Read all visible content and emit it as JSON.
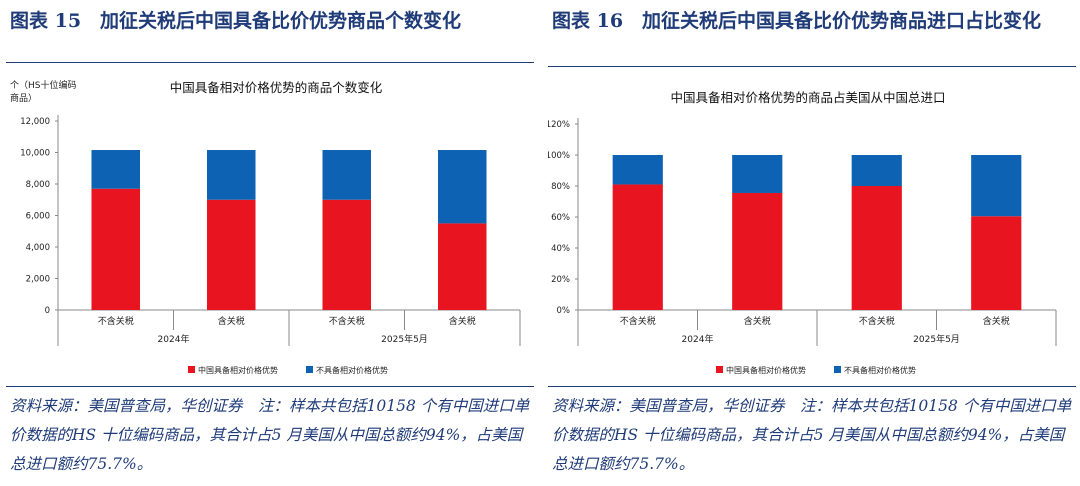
{
  "charts": [
    {
      "fig_title": "图表 15　加征关税后中国具备比价优势商品个数变化",
      "source_note": "资料来源：美国普查局，华创证券　注：样本共包括10158 个有中国进口单价数据的HS 十位编码商品，其合计占5 月美国从中国总额约94%，占美国总进口额约75.7%。",
      "colors": {
        "series_a": "#e8141f",
        "series_b": "#0d62b3"
      },
      "chart_data": {
        "type": "bar",
        "stacked": true,
        "title": "中国具备相对价格优势的商品个数变化",
        "ylabel": "个（HS十位编码商品）",
        "ylim": [
          0,
          12000
        ],
        "yticks": [
          "0",
          "2,000",
          "4,000",
          "6,000",
          "8,000",
          "10,000",
          "12,000"
        ],
        "categories": [
          "不含关税",
          "含关税",
          "不含关税",
          "含关税"
        ],
        "groups": [
          {
            "label": "2024年",
            "span": [
              0,
              1
            ]
          },
          {
            "label": "2025年5月",
            "span": [
              2,
              3
            ]
          }
        ],
        "series": [
          {
            "name": "中国具备相对价格优势",
            "values": [
              7700,
              7000,
              7000,
              5500
            ]
          },
          {
            "name": "不具备相对价格优势",
            "values": [
              2458,
              3158,
              3158,
              4658
            ]
          }
        ],
        "legend_position": "bottom",
        "grid": false
      }
    },
    {
      "fig_title": "图表 16　加征关税后中国具备比价优势商品进口占比变化",
      "source_note": "资料来源：美国普查局，华创证券　注：样本共包括10158 个有中国进口单价数据的HS 十位编码商品，其合计占5 月美国从中国总额约94%，占美国总进口额约75.7%。",
      "colors": {
        "series_a": "#e8141f",
        "series_b": "#0d62b3"
      },
      "chart_data": {
        "type": "bar",
        "stacked": true,
        "title": "中国具备相对价格优势的商品占美国从中国总进口",
        "ylabel": "",
        "ylim": [
          0,
          120
        ],
        "yticks": [
          "0%",
          "20%",
          "40%",
          "60%",
          "80%",
          "100%",
          "120%"
        ],
        "categories": [
          "不含关税",
          "含关税",
          "不含关税",
          "含关税"
        ],
        "groups": [
          {
            "label": "2024年",
            "span": [
              0,
              1
            ]
          },
          {
            "label": "2025年5月",
            "span": [
              2,
              3
            ]
          }
        ],
        "series": [
          {
            "name": "中国具备相对价格优势",
            "values": [
              81,
              75.5,
              80,
              60.5
            ]
          },
          {
            "name": "不具备相对价格优势",
            "values": [
              19,
              24.5,
              20,
              39.5
            ]
          }
        ],
        "legend_position": "bottom",
        "grid": false
      }
    }
  ]
}
